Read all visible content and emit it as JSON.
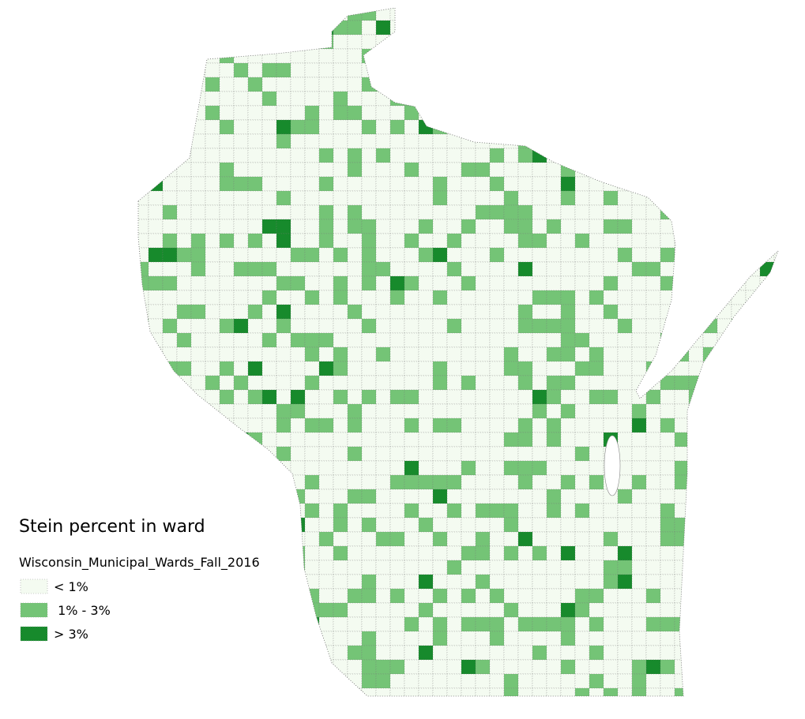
{
  "legend": {
    "title": "Stein percent in ward",
    "layer": "Wisconsin_Municipal_Wards_Fall_2016",
    "items": [
      {
        "label": "< 1%",
        "color": "#f4fbf1"
      },
      {
        "label": " 1% - 3%",
        "color": "#74c476"
      },
      {
        "label": "> 3%",
        "color": "#178a2c"
      }
    ]
  }
}
